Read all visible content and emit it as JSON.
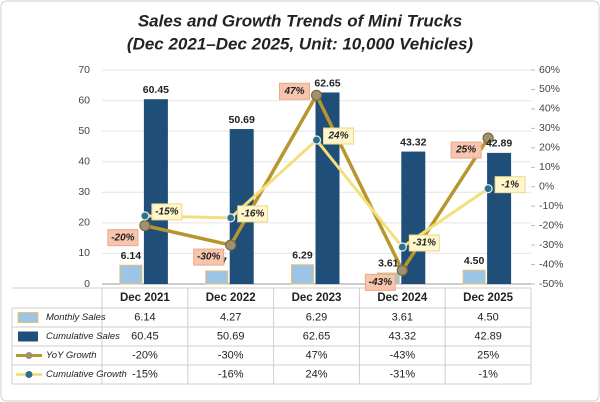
{
  "chart_data": {
    "type": "bar",
    "title": "Sales and Growth Trends of Mini Trucks",
    "subtitle": "(Dec 2021–Dec 2025, Unit: 10,000 Vehicles)",
    "categories": [
      "Dec 2021",
      "Dec 2022",
      "Dec 2023",
      "Dec 2024",
      "Dec 2025"
    ],
    "series": [
      {
        "name": "Monthly Sales",
        "type": "bar",
        "color": "#9dc3e6",
        "values": [
          6.14,
          4.27,
          6.29,
          3.61,
          4.5
        ],
        "value_labels": [
          "6.14",
          "4.27",
          "6.29",
          "3.61",
          "4.50"
        ]
      },
      {
        "name": "Cumulative Sales",
        "type": "bar",
        "color": "#1f4e79",
        "values": [
          60.45,
          50.69,
          62.65,
          43.32,
          42.89
        ]
      },
      {
        "name": "YoY Growth",
        "type": "line",
        "axis": "y2",
        "color": "#b8962e",
        "values": [
          -20,
          -30,
          47,
          -43,
          25
        ],
        "value_labels": [
          "-20%",
          "-30%",
          "47%",
          "-43%",
          "25%"
        ]
      },
      {
        "name": "Cumulative Growth",
        "type": "line",
        "axis": "y2",
        "color": "#f3e07a",
        "values": [
          -15,
          -16,
          24,
          -31,
          -1
        ],
        "value_labels": [
          "-15%",
          "-16%",
          "24%",
          "-31%",
          "-1%"
        ]
      }
    ],
    "ylim": [
      0,
      70
    ],
    "yticks": [
      0,
      10,
      20,
      30,
      40,
      50,
      60,
      70
    ],
    "y2lim": [
      -50,
      60
    ],
    "y2ticks": [
      {
        "value": -50,
        "label": "-50%"
      },
      {
        "value": -40,
        "label": "-40%"
      },
      {
        "value": -30,
        "label": "-30%"
      },
      {
        "value": -20,
        "label": "-20%"
      },
      {
        "value": -10,
        "label": "-10%"
      },
      {
        "value": 0,
        "label": "0%"
      },
      {
        "value": 10,
        "label": "10%"
      },
      {
        "value": 20,
        "label": "20%"
      },
      {
        "value": 30,
        "label": "30%"
      },
      {
        "value": 40,
        "label": "40%"
      },
      {
        "value": 50,
        "label": "50%"
      },
      {
        "value": 60,
        "label": "60%"
      }
    ],
    "grid": true
  }
}
